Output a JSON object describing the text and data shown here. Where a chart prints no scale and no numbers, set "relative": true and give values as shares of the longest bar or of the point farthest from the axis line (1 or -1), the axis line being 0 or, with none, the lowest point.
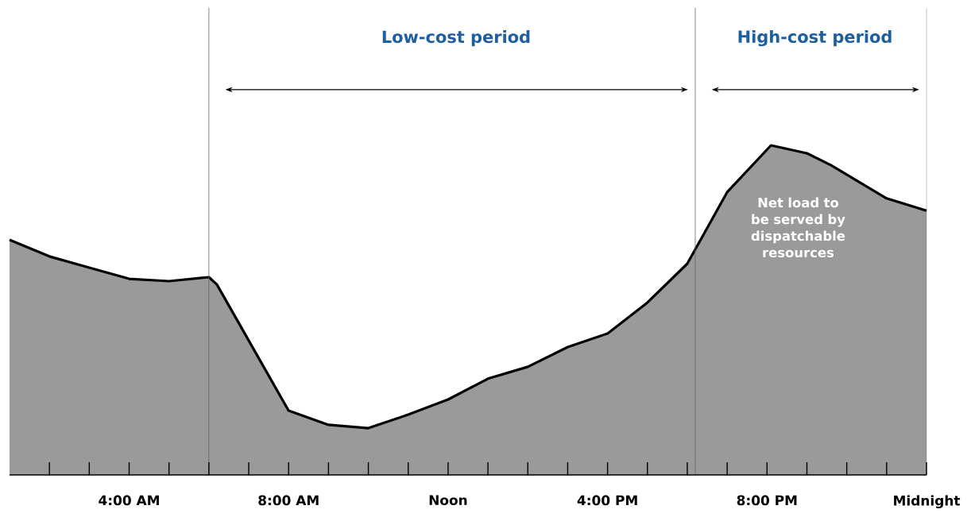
{
  "chart_data": {
    "type": "area",
    "relative": true,
    "x": [
      1,
      2,
      3,
      4,
      5,
      6,
      6.2,
      8,
      9,
      10,
      11,
      12,
      13,
      14,
      15,
      16,
      17,
      18,
      19,
      20.1,
      21,
      21.6,
      23,
      24
    ],
    "series": [
      {
        "color": "#9a9a9a",
        "values": [
          0.713,
          0.663,
          0.629,
          0.595,
          0.588,
          0.6,
          0.578,
          0.195,
          0.152,
          0.142,
          0.183,
          0.229,
          0.292,
          0.328,
          0.388,
          0.429,
          0.523,
          0.641,
          0.858,
          1.0,
          0.976,
          0.94,
          0.839,
          0.802
        ]
      }
    ],
    "xlim": [
      1,
      24
    ],
    "xticks": [
      {
        "value": 2,
        "label": null
      },
      {
        "value": 3,
        "label": null
      },
      {
        "value": 4,
        "label": "4:00 AM"
      },
      {
        "value": 5,
        "label": null
      },
      {
        "value": 6,
        "label": null
      },
      {
        "value": 7,
        "label": null
      },
      {
        "value": 8,
        "label": "8:00 AM"
      },
      {
        "value": 9,
        "label": null
      },
      {
        "value": 10,
        "label": null
      },
      {
        "value": 11,
        "label": null
      },
      {
        "value": 12,
        "label": "Noon"
      },
      {
        "value": 13,
        "label": null
      },
      {
        "value": 14,
        "label": null
      },
      {
        "value": 15,
        "label": null
      },
      {
        "value": 16,
        "label": "4:00 PM"
      },
      {
        "value": 17,
        "label": null
      },
      {
        "value": 18,
        "label": null
      },
      {
        "value": 19,
        "label": null
      },
      {
        "value": 20,
        "label": "8:00 PM"
      },
      {
        "value": 21,
        "label": null
      },
      {
        "value": 22,
        "label": null
      },
      {
        "value": 23,
        "label": null
      },
      {
        "value": 24,
        "label": "Midnight"
      }
    ],
    "ref_lines": [
      {
        "axis": "x",
        "value": 6,
        "color": "#666666"
      },
      {
        "axis": "x",
        "value": 18.2,
        "color": "#666666"
      }
    ],
    "annotations": [
      "Low-cost period",
      "High-cost period",
      "Net load to be served by dispatchable resources"
    ]
  }
}
